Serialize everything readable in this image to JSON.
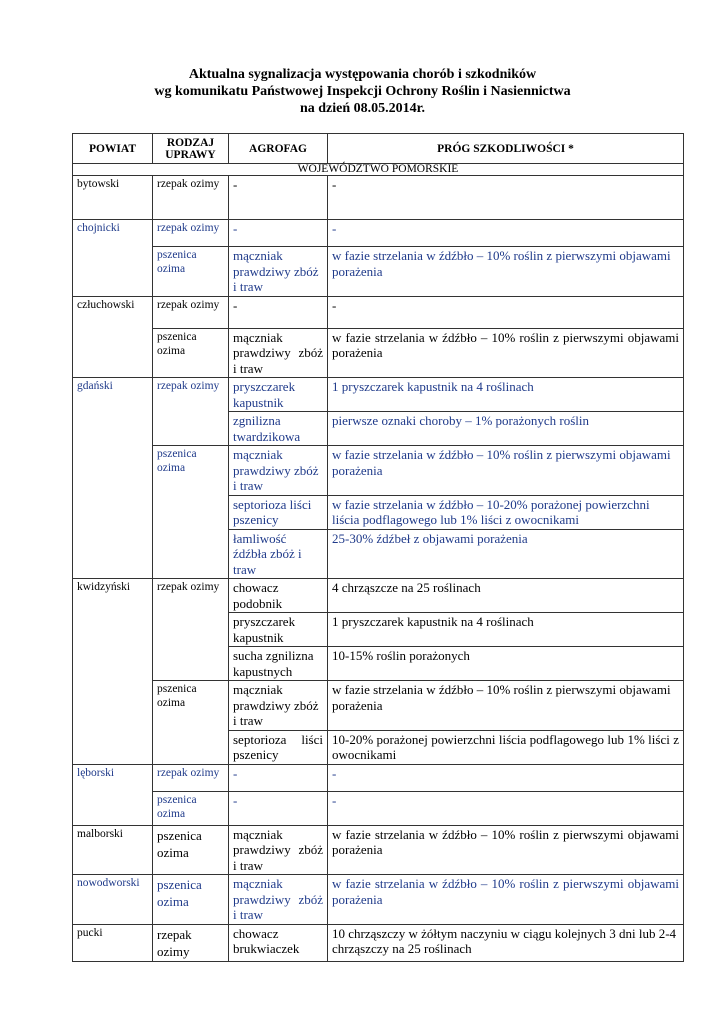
{
  "title": [
    "Aktualna sygnalizacja występowania chorób i szkodników",
    "wg komunikatu Państwowej Inspekcji Ochrony Roślin i Nasiennictwa",
    "na dzień 08.05.2014r."
  ],
  "headers": [
    "POWIAT",
    "RODZAJ UPRAWY",
    "AGROFAG",
    "PRÓG SZKODLIWOŚCI *"
  ],
  "region": "WOJEWÓDZTWO POMORSKIE",
  "colors": {
    "black": "#000000",
    "blue": "#1f3a8a"
  },
  "groups": [
    {
      "powiat": "bytowski",
      "color": "black",
      "crops": [
        {
          "name": "rzepak ozimy",
          "items": [
            {
              "agrofag": "-",
              "prog": "-"
            }
          ]
        }
      ]
    },
    {
      "powiat": "chojnicki",
      "color": "blue",
      "crops": [
        {
          "name": "rzepak ozimy",
          "items": [
            {
              "agrofag": "-",
              "prog": "-"
            }
          ]
        },
        {
          "name": "pszenica ozima",
          "items": [
            {
              "agrofag": "mączniak prawdziwy zbóż i traw",
              "prog": "w fazie strzelania w źdźbło – 10% roślin z pierwszymi objawami porażenia"
            }
          ]
        }
      ]
    },
    {
      "powiat": "człuchowski",
      "color": "black",
      "crops": [
        {
          "name": "rzepak ozimy",
          "items": [
            {
              "agrofag": "-",
              "prog": "-"
            }
          ]
        },
        {
          "name": "pszenica ozima",
          "items": [
            {
              "agrofag": "mączniak prawdziwy zbóż i traw",
              "prog": "w fazie strzelania w źdźbło – 10% roślin z pierwszymi objawami porażenia"
            }
          ]
        }
      ]
    },
    {
      "powiat": "gdański",
      "color": "blue",
      "crops": [
        {
          "name": "rzepak ozimy",
          "items": [
            {
              "agrofag": "pryszczarek kapustnik",
              "prog": "1 pryszczarek kapustnik na 4 roślinach"
            },
            {
              "agrofag": "zgnilizna twardzikowa",
              "prog": "pierwsze oznaki choroby – 1% porażonych roślin"
            }
          ]
        },
        {
          "name": "pszenica ozima",
          "items": [
            {
              "agrofag": "mączniak prawdziwy zbóż i traw",
              "prog": "w fazie strzelania w źdźbło – 10% roślin z pierwszymi objawami porażenia"
            },
            {
              "agrofag": "septorioza liści pszenicy",
              "prog": "w fazie strzelania w źdźbło – 10-20% porażonej powierzchni liścia podflagowego lub 1% liści z owocnikami"
            },
            {
              "agrofag": "łamliwość źdźbła zbóż i traw",
              "prog": "25-30% źdźbeł z objawami porażenia"
            }
          ]
        }
      ]
    },
    {
      "powiat": "kwidzyński",
      "color": "black",
      "crops": [
        {
          "name": "rzepak ozimy",
          "items": [
            {
              "agrofag": "chowacz podobnik",
              "prog": "4 chrząszcze na 25 roślinach"
            },
            {
              "agrofag": "pryszczarek kapustnik",
              "prog": "1 pryszczarek kapustnik na 4 roślinach"
            },
            {
              "agrofag": "sucha zgnilizna kapustnych",
              "prog": "10-15% roślin porażonych"
            }
          ]
        },
        {
          "name": "pszenica ozima",
          "items": [
            {
              "agrofag": "mączniak prawdziwy zbóż i traw",
              "prog": "w fazie strzelania w źdźbło – 10% roślin z pierwszymi objawami porażenia"
            },
            {
              "agrofag": "septorioza liści pszenicy",
              "prog": "10-20% porażonej powierzchni liścia podflagowego  lub 1% liści z owocnikami"
            }
          ]
        }
      ]
    },
    {
      "powiat": "lęborski",
      "color": "blue",
      "crops": [
        {
          "name": "rzepak ozimy",
          "items": [
            {
              "agrofag": "-",
              "prog": "-"
            }
          ]
        },
        {
          "name": "pszenica ozima",
          "items": [
            {
              "agrofag": "-",
              "prog": "-"
            }
          ]
        }
      ]
    },
    {
      "powiat": "malborski",
      "color": "black",
      "crops": [
        {
          "name": "pszenica ozima",
          "items": [
            {
              "agrofag": "mączniak prawdziwy zbóż i traw",
              "prog": "w fazie strzelania w źdźbło – 10% roślin z pierwszymi objawami porażenia"
            }
          ]
        }
      ]
    },
    {
      "powiat": "nowodworski",
      "color": "blue",
      "crops": [
        {
          "name": "pszenica ozima",
          "items": [
            {
              "agrofag": "mączniak prawdziwy zbóż i traw",
              "prog": "w fazie strzelania w źdźbło – 10% roślin z pierwszymi objawami porażenia"
            }
          ]
        }
      ]
    },
    {
      "powiat": "pucki",
      "color": "black",
      "crops": [
        {
          "name": "rzepak ozimy",
          "items": [
            {
              "agrofag": "chowacz brukwiaczek",
              "prog": "10 chrząszczy w żółtym naczyniu w ciągu kolejnych 3 dni lub 2-4 chrząszczy na 25 roślinach"
            }
          ]
        }
      ]
    }
  ]
}
